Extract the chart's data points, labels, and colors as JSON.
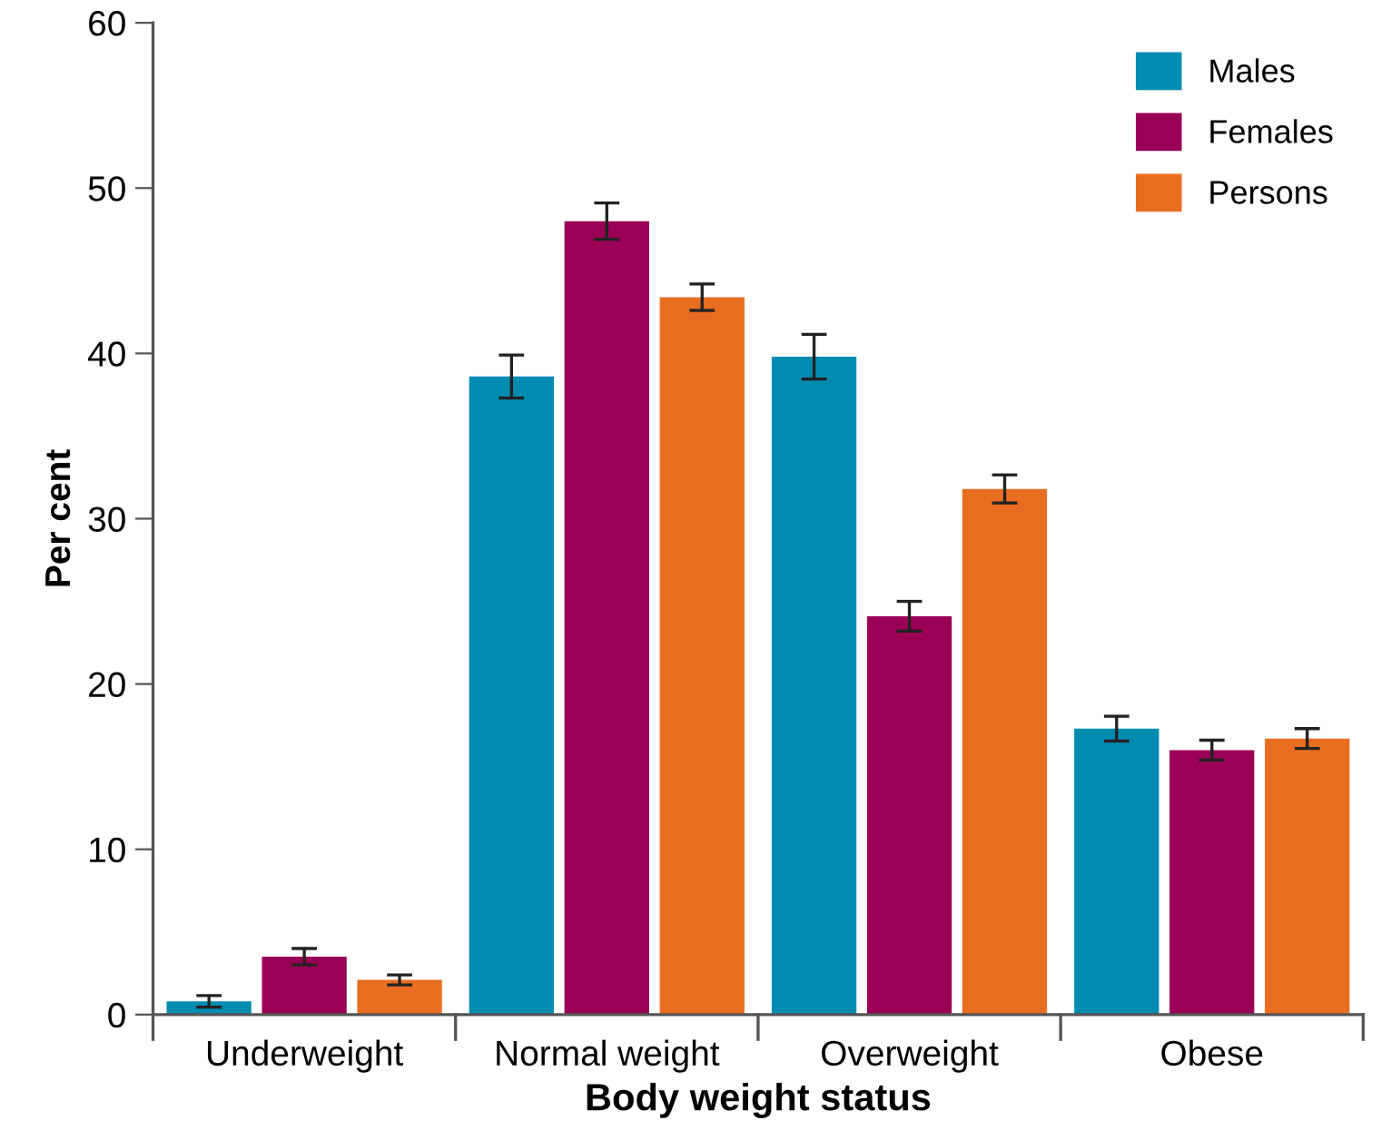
{
  "chart_data": {
    "type": "bar",
    "xlabel": "Body weight status",
    "ylabel": "Per cent",
    "categories": [
      "Underweight",
      "Normal weight",
      "Overweight",
      "Obese"
    ],
    "series": [
      {
        "name": "Males",
        "color": "#008bb0",
        "values": [
          0.8,
          38.6,
          39.8,
          17.3
        ],
        "errors": [
          0.35,
          1.3,
          1.35,
          0.75
        ]
      },
      {
        "name": "Females",
        "color": "#9b0057",
        "values": [
          3.5,
          48.0,
          24.1,
          16.0
        ],
        "errors": [
          0.5,
          1.1,
          0.9,
          0.6
        ]
      },
      {
        "name": "Persons",
        "color": "#e96d20",
        "values": [
          2.1,
          43.4,
          31.8,
          16.7
        ],
        "errors": [
          0.3,
          0.8,
          0.85,
          0.6
        ]
      }
    ],
    "ylim": [
      0,
      60
    ],
    "yticks": [
      0,
      10,
      20,
      30,
      40,
      50,
      60
    ],
    "grid": false,
    "legend": "top right"
  }
}
